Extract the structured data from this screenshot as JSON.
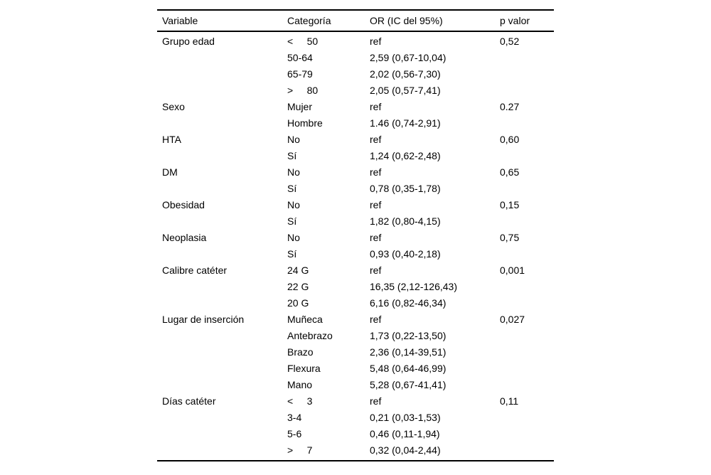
{
  "table": {
    "headers": [
      "Variable",
      "Categoría",
      "OR (IC del 95%)",
      "p valor"
    ],
    "groups": [
      {
        "variable": "Grupo edad",
        "p": "0,52",
        "rows": [
          {
            "category": "<     50",
            "or": "ref"
          },
          {
            "category": "50-64",
            "or": "2,59 (0,67-10,04)"
          },
          {
            "category": "65-79",
            "or": "2,02 (0,56-7,30)"
          },
          {
            "category": ">     80",
            "or": "2,05 (0,57-7,41)"
          }
        ]
      },
      {
        "variable": "Sexo",
        "p": "0.27",
        "rows": [
          {
            "category": "Mujer",
            "or": "ref"
          },
          {
            "category": "Hombre",
            "or": "1.46 (0,74-2,91)"
          }
        ]
      },
      {
        "variable": "HTA",
        "p": "0,60",
        "rows": [
          {
            "category": "No",
            "or": "ref"
          },
          {
            "category": "Sí",
            "or": "1,24 (0,62-2,48)"
          }
        ]
      },
      {
        "variable": "DM",
        "p": "0,65",
        "rows": [
          {
            "category": "No",
            "or": "ref"
          },
          {
            "category": "Sí",
            "or": "0,78 (0,35-1,78)"
          }
        ]
      },
      {
        "variable": "Obesidad",
        "p": "0,15",
        "rows": [
          {
            "category": "No",
            "or": "ref"
          },
          {
            "category": "Sí",
            "or": "1,82 (0,80-4,15)"
          }
        ]
      },
      {
        "variable": "Neoplasia",
        "p": "0,75",
        "rows": [
          {
            "category": "No",
            "or": "ref"
          },
          {
            "category": "Sí",
            "or": "0,93 (0,40-2,18)"
          }
        ]
      },
      {
        "variable": "Calibre catéter",
        "p": "0,001",
        "rows": [
          {
            "category": "24 G",
            "or": "ref"
          },
          {
            "category": "22 G",
            "or": "16,35 (2,12-126,43)"
          },
          {
            "category": "20 G",
            "or": "6,16 (0,82-46,34)"
          }
        ]
      },
      {
        "variable": "Lugar de inserción",
        "p": "0,027",
        "rows": [
          {
            "category": "Muñeca",
            "or": "ref"
          },
          {
            "category": "Antebrazo",
            "or": "1,73 (0,22-13,50)"
          },
          {
            "category": "Brazo",
            "or": "2,36 (0,14-39,51)"
          },
          {
            "category": "Flexura",
            "or": "5,48 (0,64-46,99)"
          },
          {
            "category": "Mano",
            "or": "5,28 (0,67-41,41)"
          }
        ]
      },
      {
        "variable": "Días catéter",
        "p": "0,11",
        "rows": [
          {
            "category": "<     3",
            "or": "ref"
          },
          {
            "category": "3-4",
            "or": "0,21 (0,03-1,53)"
          },
          {
            "category": "5-6",
            "or": "0,46 (0,11-1,94)"
          },
          {
            "category": ">     7",
            "or": "0,32 (0,04-2,44)"
          }
        ]
      }
    ]
  }
}
